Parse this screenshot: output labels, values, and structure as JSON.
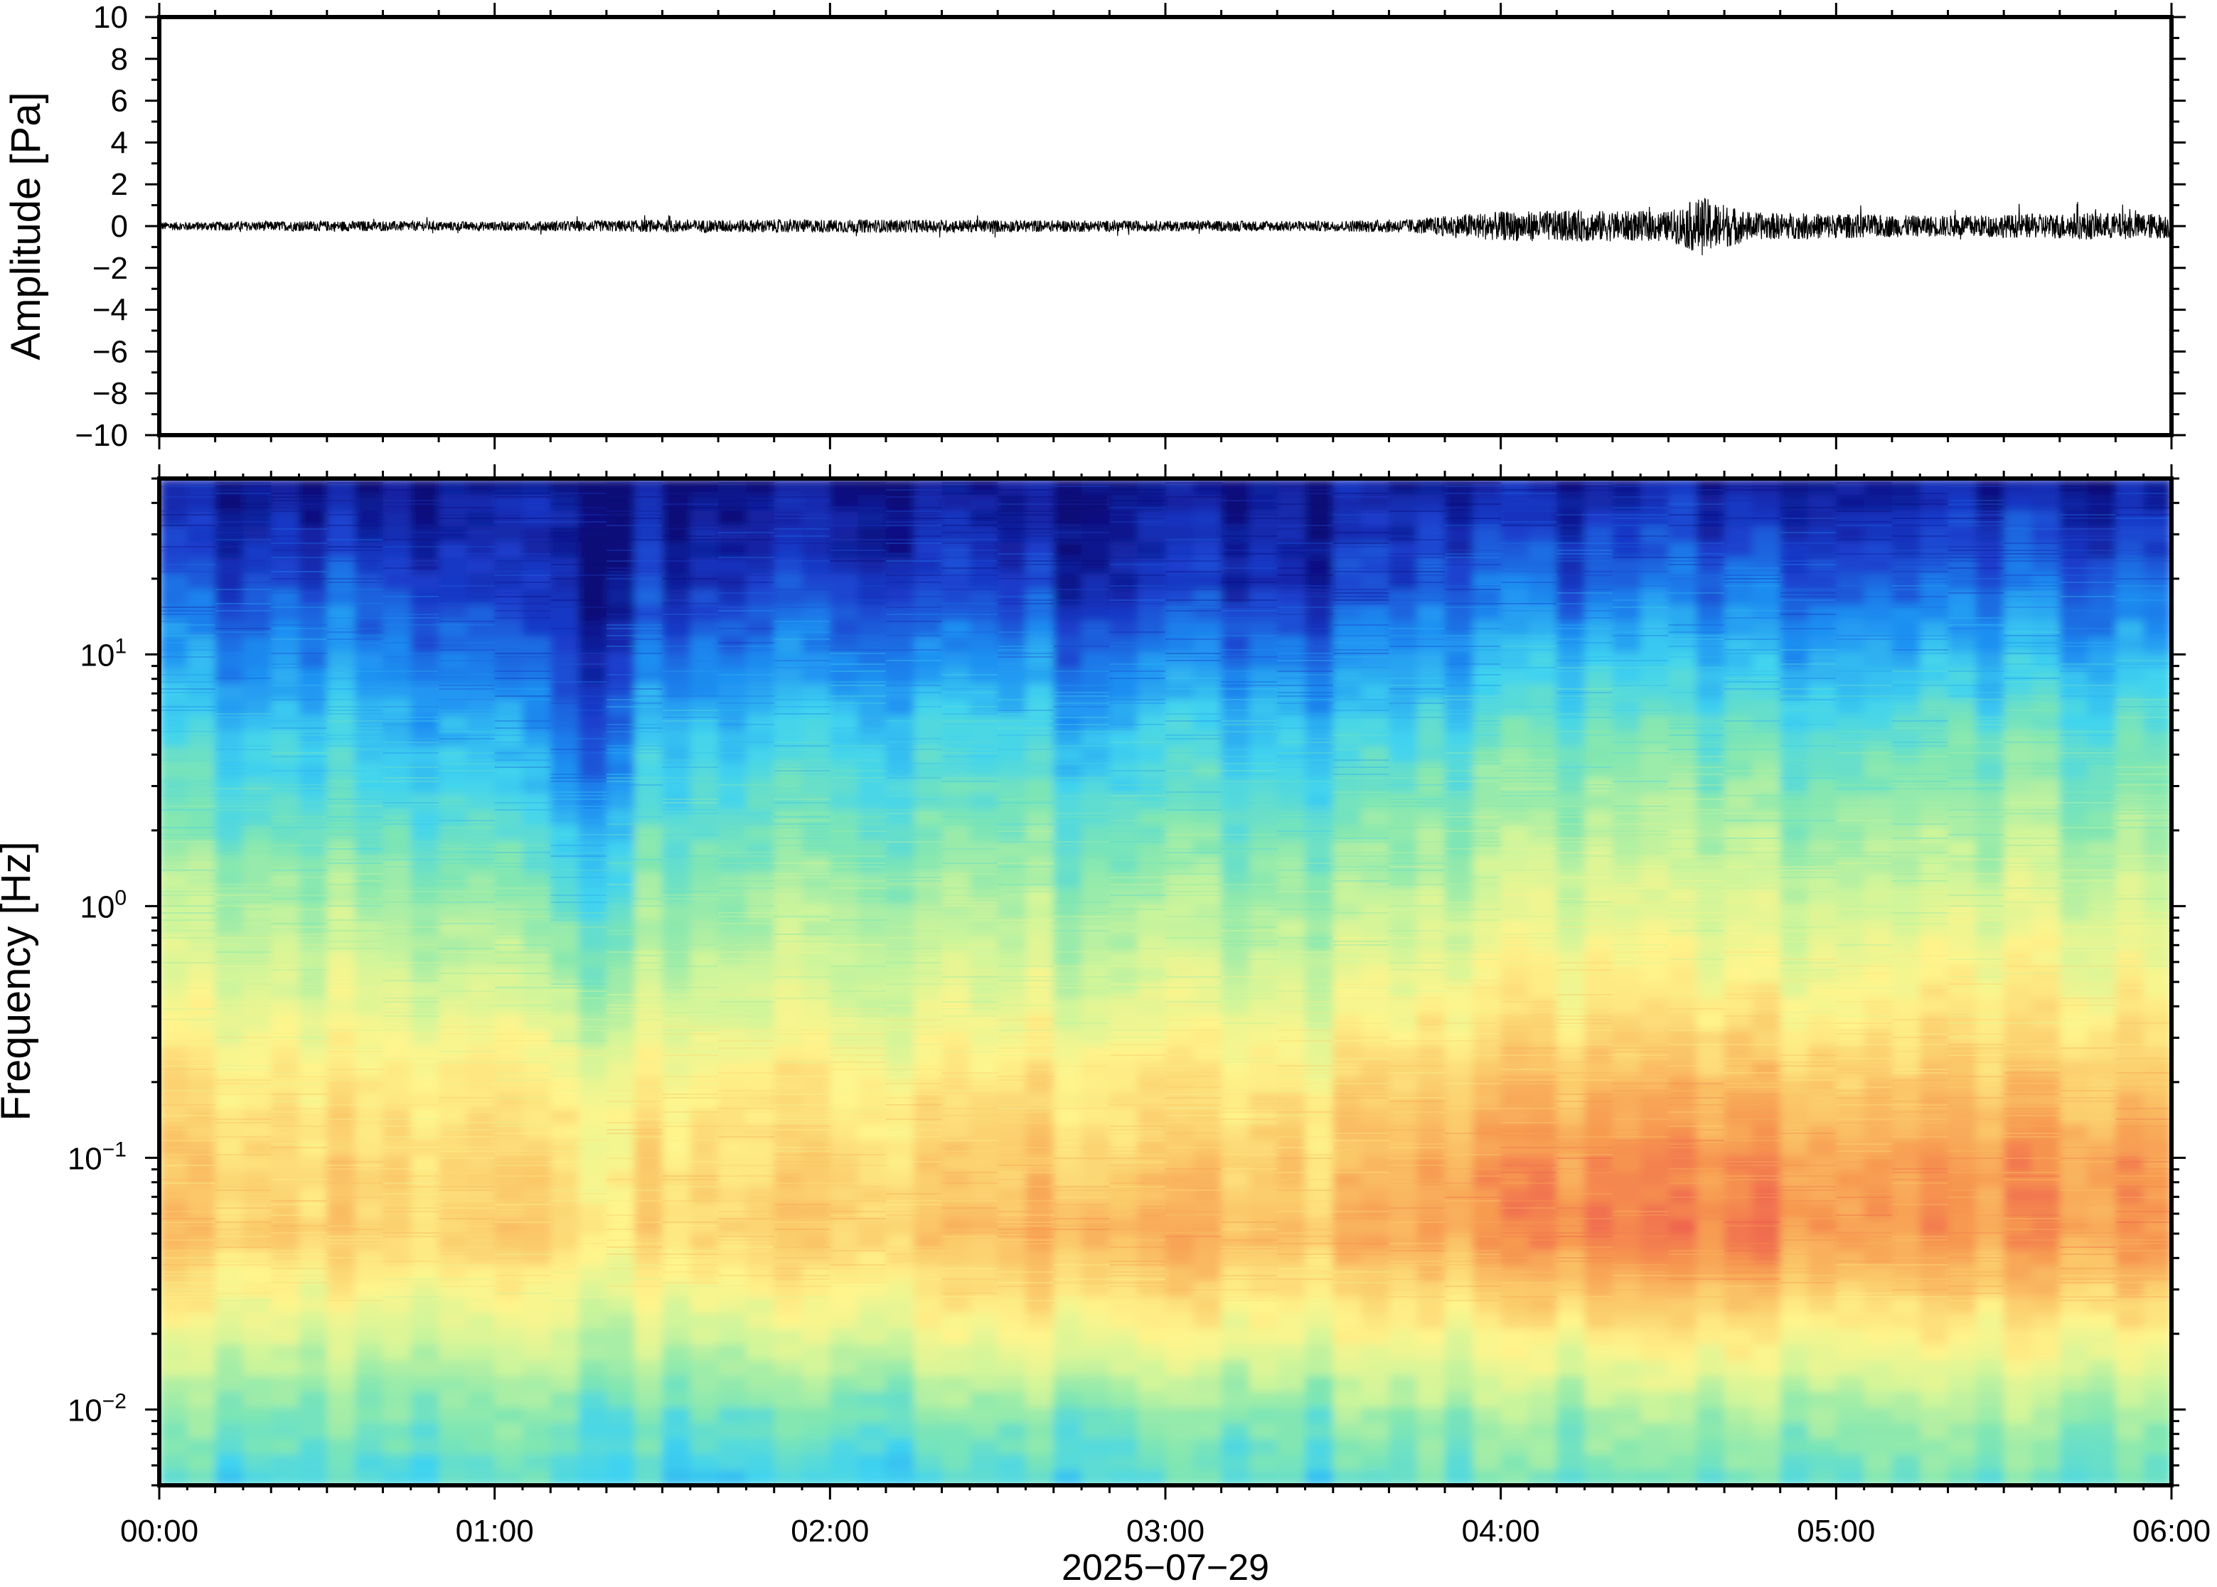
{
  "chart_data": [
    {
      "type": "line",
      "panel": "waveform",
      "ylabel": "Amplitude [Pa]",
      "ylim": [
        -10,
        10
      ],
      "yticks": [
        10,
        8,
        6,
        4,
        2,
        0,
        -2,
        -4,
        -6,
        -8,
        -10
      ],
      "ytick_labels": [
        "10",
        "8",
        "6",
        "4",
        "2",
        "0",
        "−2",
        "−4",
        "−6",
        "−8",
        "−10"
      ],
      "x_range_hours": [
        0,
        6
      ],
      "line_color": "#000000",
      "envelope": {
        "x_hours": [
          0.0,
          0.5,
          1.0,
          1.5,
          2.0,
          2.5,
          3.0,
          3.5,
          3.75,
          3.9,
          4.0,
          4.25,
          4.5,
          4.6,
          4.75,
          5.0,
          5.25,
          5.5,
          5.75,
          6.0
        ],
        "amplitude_pa": [
          0.2,
          0.25,
          0.22,
          0.3,
          0.32,
          0.3,
          0.25,
          0.25,
          0.35,
          0.6,
          0.7,
          0.75,
          0.7,
          1.4,
          0.65,
          0.6,
          0.5,
          0.55,
          0.65,
          0.6
        ]
      }
    },
    {
      "type": "heatmap",
      "panel": "spectrogram",
      "ylabel": "Frequency [Hz]",
      "xlabel": "2025−07−29",
      "yscale": "log",
      "ylim": [
        0.005,
        50
      ],
      "yticks": [
        10,
        1,
        0.1,
        0.01
      ],
      "ytick_labels": [
        {
          "base": "10",
          "exp": "1"
        },
        {
          "base": "10",
          "exp": "0"
        },
        {
          "base": "10",
          "exp": "−1"
        },
        {
          "base": "10",
          "exp": "−2"
        }
      ],
      "xticks_hours": [
        0,
        1,
        2,
        3,
        4,
        5,
        6
      ],
      "xtick_labels": [
        "00:00",
        "01:00",
        "02:00",
        "03:00",
        "04:00",
        "05:00",
        "06:00"
      ],
      "colormap": [
        "#0a0a78",
        "#1a3ccc",
        "#1e8ff2",
        "#3fd3f0",
        "#80e6b2",
        "#cff59a",
        "#fff58c",
        "#fbca6a",
        "#f79a50",
        "#ee5a4e"
      ],
      "intensity_range": [
        0,
        1
      ],
      "time_hours": [
        0.0,
        0.5,
        1.0,
        1.25,
        1.5,
        2.0,
        2.5,
        2.75,
        3.0,
        3.5,
        4.0,
        4.25,
        4.5,
        4.75,
        5.0,
        5.5,
        6.0
      ],
      "freq_hz": [
        0.005,
        0.01,
        0.02,
        0.05,
        0.1,
        0.2,
        0.5,
        1,
        2,
        5,
        10,
        20,
        50
      ],
      "intensity": [
        [
          0.35,
          0.45,
          0.6,
          0.78,
          0.74,
          0.7,
          0.58,
          0.52,
          0.42,
          0.32,
          0.22,
          0.12,
          0.02
        ],
        [
          0.36,
          0.45,
          0.58,
          0.76,
          0.74,
          0.7,
          0.58,
          0.52,
          0.42,
          0.32,
          0.22,
          0.14,
          0.02
        ],
        [
          0.36,
          0.44,
          0.56,
          0.74,
          0.72,
          0.68,
          0.55,
          0.48,
          0.38,
          0.26,
          0.16,
          0.08,
          0.02
        ],
        [
          0.35,
          0.43,
          0.55,
          0.72,
          0.7,
          0.64,
          0.48,
          0.38,
          0.26,
          0.14,
          0.06,
          0.03,
          0.02
        ],
        [
          0.34,
          0.43,
          0.58,
          0.76,
          0.74,
          0.7,
          0.56,
          0.5,
          0.42,
          0.32,
          0.2,
          0.1,
          0.02
        ],
        [
          0.35,
          0.45,
          0.6,
          0.78,
          0.75,
          0.7,
          0.58,
          0.52,
          0.44,
          0.34,
          0.22,
          0.12,
          0.02
        ],
        [
          0.36,
          0.46,
          0.64,
          0.8,
          0.76,
          0.7,
          0.58,
          0.52,
          0.44,
          0.34,
          0.22,
          0.1,
          0.02
        ],
        [
          0.36,
          0.46,
          0.66,
          0.84,
          0.76,
          0.7,
          0.58,
          0.5,
          0.42,
          0.3,
          0.18,
          0.08,
          0.02
        ],
        [
          0.38,
          0.46,
          0.64,
          0.84,
          0.76,
          0.7,
          0.58,
          0.5,
          0.42,
          0.32,
          0.2,
          0.08,
          0.02
        ],
        [
          0.36,
          0.46,
          0.62,
          0.8,
          0.76,
          0.7,
          0.58,
          0.5,
          0.42,
          0.3,
          0.18,
          0.08,
          0.02
        ],
        [
          0.42,
          0.5,
          0.66,
          0.9,
          0.88,
          0.78,
          0.66,
          0.58,
          0.5,
          0.4,
          0.28,
          0.16,
          0.04
        ],
        [
          0.4,
          0.5,
          0.68,
          0.94,
          0.9,
          0.8,
          0.68,
          0.6,
          0.52,
          0.42,
          0.3,
          0.16,
          0.04
        ],
        [
          0.4,
          0.5,
          0.68,
          0.92,
          0.88,
          0.8,
          0.66,
          0.58,
          0.5,
          0.4,
          0.28,
          0.16,
          0.04
        ],
        [
          0.4,
          0.5,
          0.7,
          0.94,
          0.9,
          0.8,
          0.66,
          0.58,
          0.5,
          0.4,
          0.28,
          0.16,
          0.04
        ],
        [
          0.4,
          0.5,
          0.66,
          0.88,
          0.86,
          0.76,
          0.64,
          0.56,
          0.48,
          0.38,
          0.26,
          0.14,
          0.03
        ],
        [
          0.4,
          0.5,
          0.66,
          0.88,
          0.88,
          0.78,
          0.66,
          0.58,
          0.5,
          0.4,
          0.28,
          0.16,
          0.04
        ],
        [
          0.4,
          0.52,
          0.7,
          0.92,
          0.9,
          0.8,
          0.68,
          0.6,
          0.52,
          0.42,
          0.3,
          0.18,
          0.04
        ]
      ]
    }
  ]
}
